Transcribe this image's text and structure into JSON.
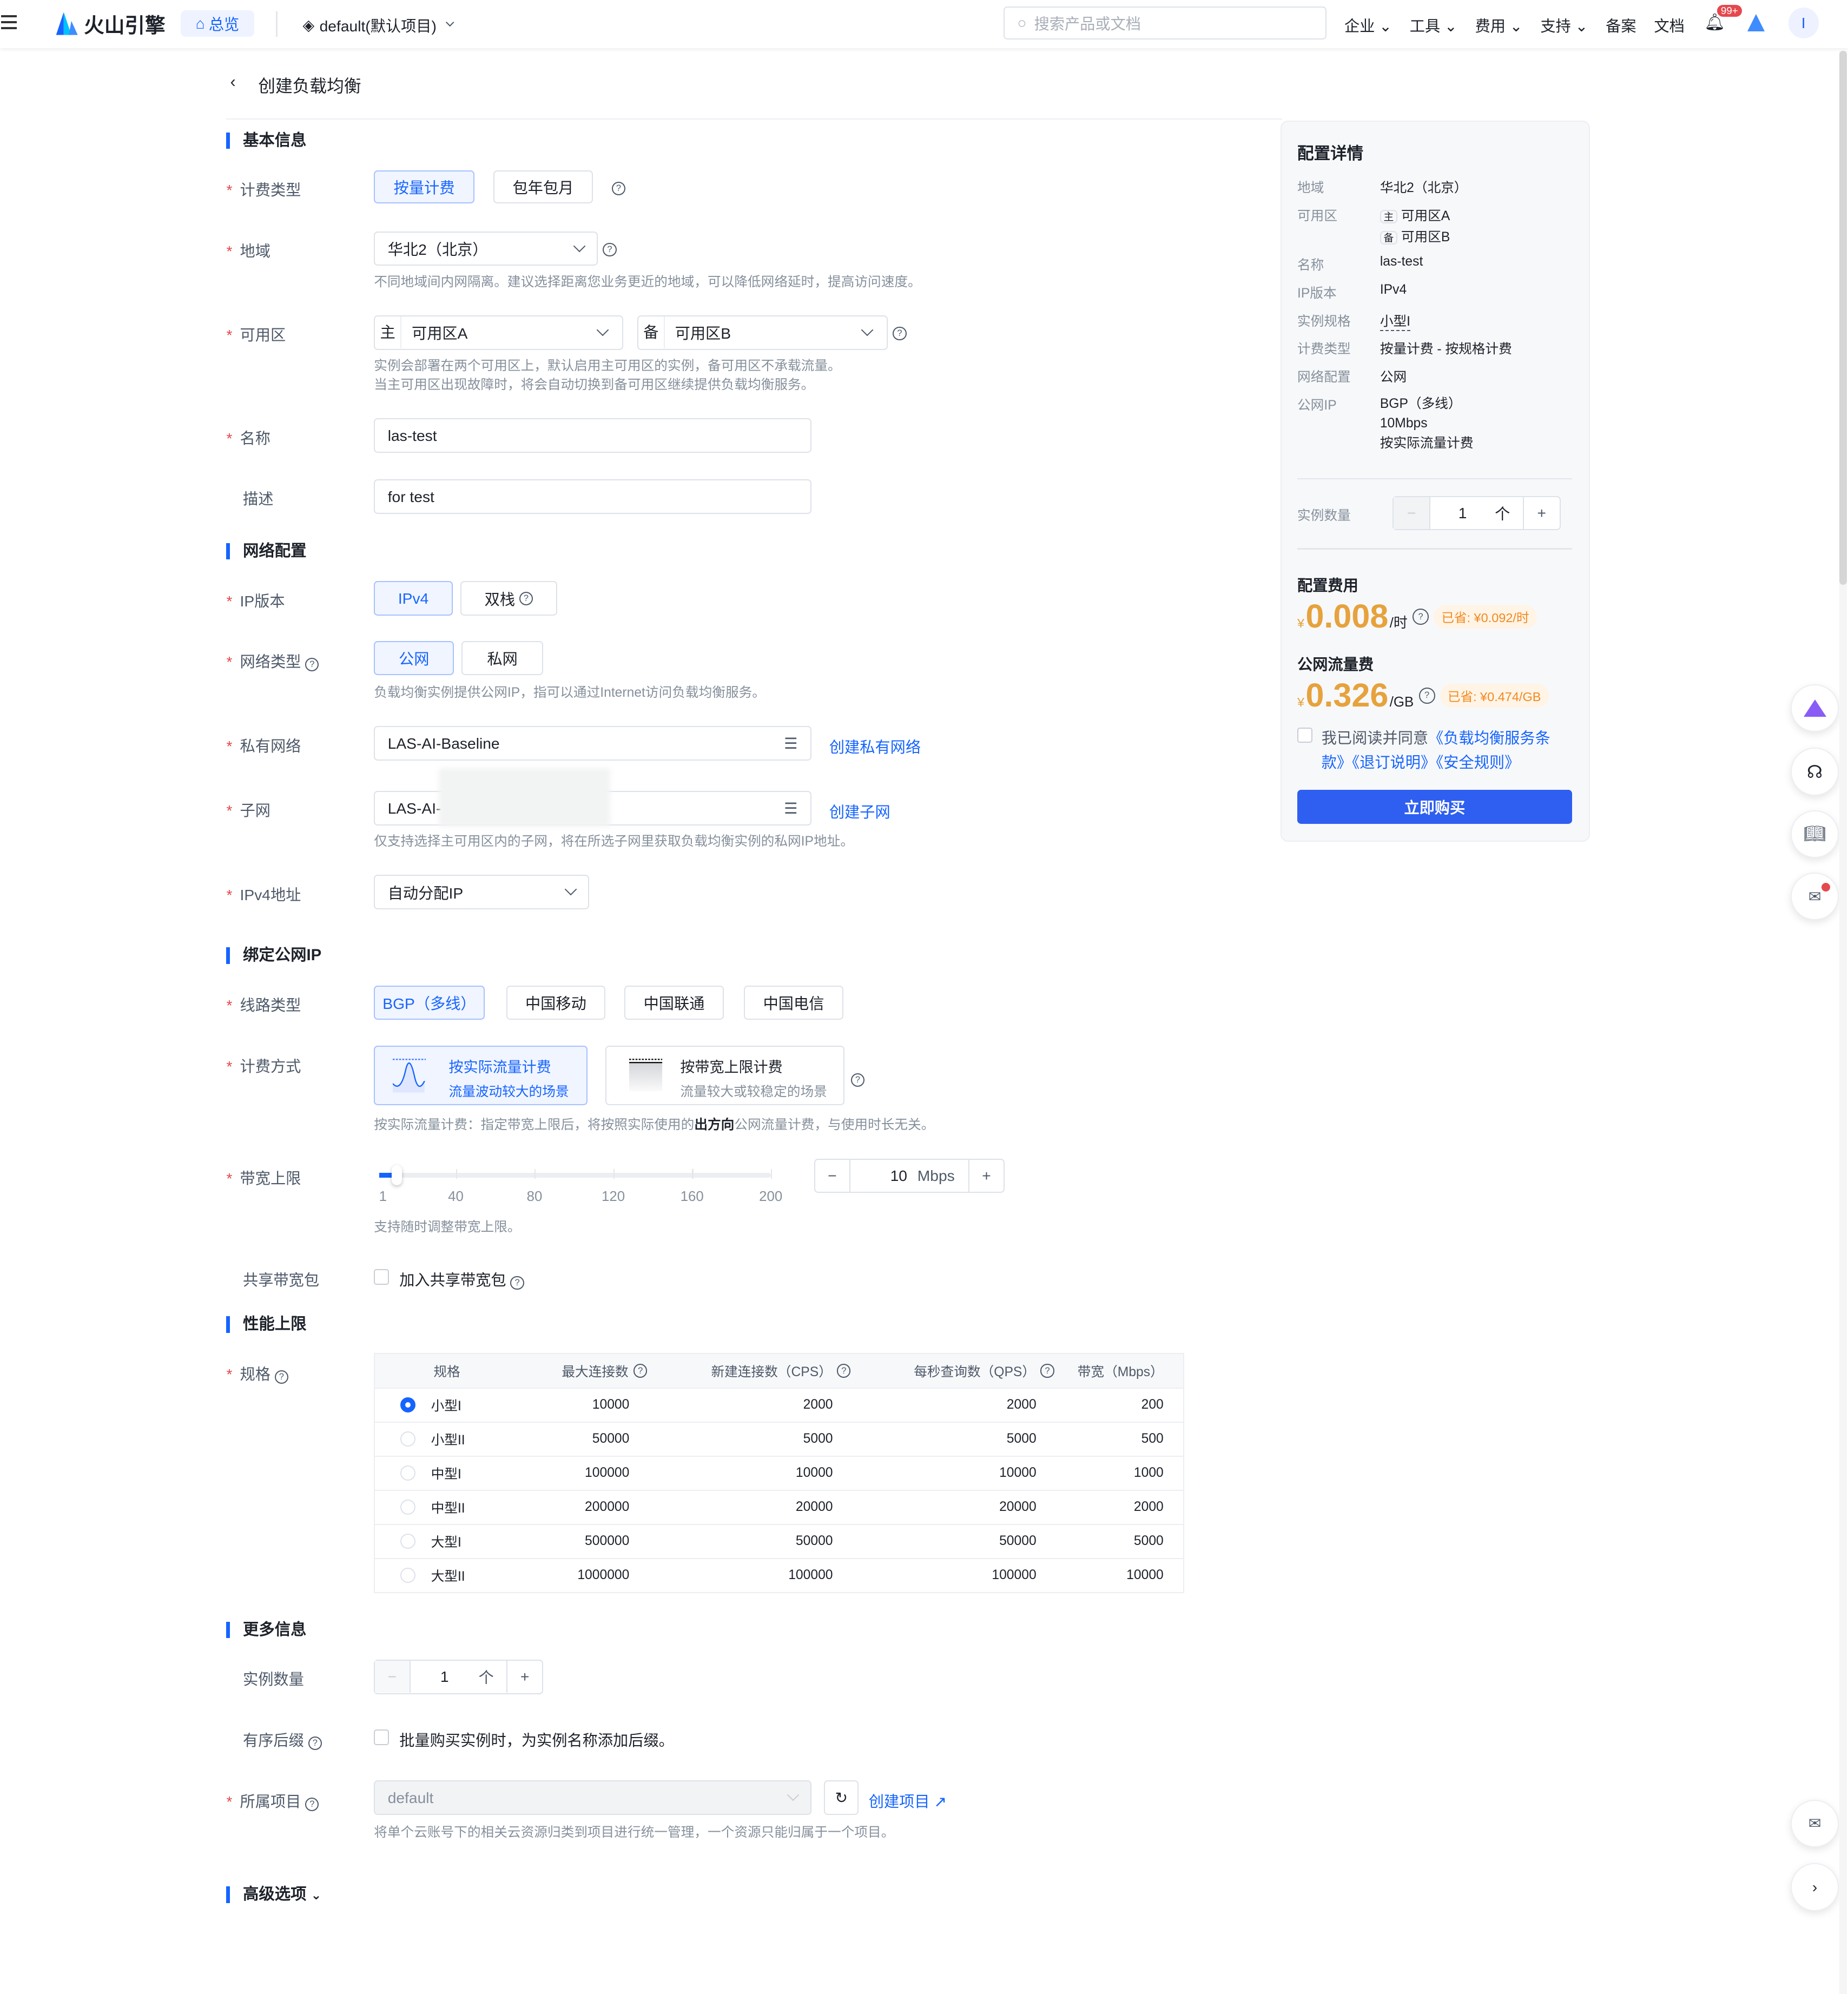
{
  "header": {
    "logo": "火山引擎",
    "overview": "总览",
    "project": "default(默认项目)",
    "search_placeholder": "搜索产品或文档",
    "menu": [
      "企业",
      "工具",
      "费用",
      "支持",
      "备案",
      "文档"
    ],
    "badge": "99+",
    "avatar": "I"
  },
  "page": {
    "title": "创建负载均衡"
  },
  "basic": {
    "title": "基本信息",
    "billing_label": "计费类型",
    "billing_options": [
      "按量计费",
      "包年包月"
    ],
    "region_label": "地域",
    "region_value": "华北2（北京）",
    "region_hint": "不同地域间内网隔离。建议选择距离您业务更近的地域，可以降低网络延时，提高访问速度。",
    "zone_label": "可用区",
    "zone_main_tag": "主",
    "zone_main": "可用区A",
    "zone_backup_tag": "备",
    "zone_backup": "可用区B",
    "zone_hint1": "实例会部署在两个可用区上，默认启用主可用区的实例，备可用区不承载流量。",
    "zone_hint2": "当主可用区出现故障时，将会自动切换到备可用区继续提供负载均衡服务。",
    "name_label": "名称",
    "name_value": "las-test",
    "desc_label": "描述",
    "desc_value": "for test"
  },
  "network": {
    "title": "网络配置",
    "ipver_label": "IP版本",
    "ipver_options": [
      "IPv4",
      "双栈"
    ],
    "nettype_label": "网络类型",
    "nettype_options": [
      "公网",
      "私网"
    ],
    "nettype_hint": "负载均衡实例提供公网IP，指可以通过Internet访问负载均衡服务。",
    "vpc_label": "私有网络",
    "vpc_value": "LAS-AI-Baseline",
    "vpc_link": "创建私有网络",
    "subnet_label": "子网",
    "subnet_value": "LAS-AI-",
    "subnet_link": "创建子网",
    "subnet_hint": "仅支持选择主可用区内的子网，将在所选子网里获取负载均衡实例的私网IP地址。",
    "ipv4_label": "IPv4地址",
    "ipv4_value": "自动分配IP"
  },
  "eip": {
    "title": "绑定公网IP",
    "line_label": "线路类型",
    "line_options": [
      "BGP（多线）",
      "中国移动",
      "中国联通",
      "中国电信"
    ],
    "charge_label": "计费方式",
    "charge_options": [
      {
        "title": "按实际流量计费",
        "desc": "流量波动较大的场景"
      },
      {
        "title": "按带宽上限计费",
        "desc": "流量较大或较稳定的场景"
      }
    ],
    "charge_hint_pre": "按实际流量计费：指定带宽上限后，将按照实际使用的",
    "charge_hint_bold": "出方向",
    "charge_hint_post": "公网流量计费，与使用时长无关。",
    "bw_label": "带宽上限",
    "bw_ticks": [
      "1",
      "40",
      "80",
      "120",
      "160",
      "200"
    ],
    "bw_value": "10",
    "bw_min": 1,
    "bw_max": 200,
    "bw_unit": "Mbps",
    "bw_hint": "支持随时调整带宽上限。",
    "share_label": "共享带宽包",
    "share_text": "加入共享带宽包"
  },
  "perf": {
    "title": "性能上限",
    "spec_label": "规格",
    "columns": [
      "规格",
      "最大连接数",
      "新建连接数（CPS）",
      "每秒查询数（QPS）",
      "带宽（Mbps）"
    ],
    "rows": [
      [
        "小型I",
        "10000",
        "2000",
        "2000",
        "200"
      ],
      [
        "小型II",
        "50000",
        "5000",
        "5000",
        "500"
      ],
      [
        "中型I",
        "100000",
        "10000",
        "10000",
        "1000"
      ],
      [
        "中型II",
        "200000",
        "20000",
        "20000",
        "2000"
      ],
      [
        "大型I",
        "500000",
        "50000",
        "50000",
        "5000"
      ],
      [
        "大型II",
        "1000000",
        "100000",
        "100000",
        "10000"
      ]
    ],
    "selected": 0
  },
  "more": {
    "title": "更多信息",
    "count_label": "实例数量",
    "count": "1",
    "count_unit": "个",
    "suffix_label": "有序后缀",
    "suffix_text": "批量购买实例时，为实例名称添加后缀。",
    "project_label": "所属项目",
    "project_value": "default",
    "project_link": "创建项目",
    "project_hint": "将单个云账号下的相关云资源归类到项目进行统一管理，一个资源只能归属于一个项目。"
  },
  "advanced": {
    "title": "高级选项"
  },
  "summary": {
    "title": "配置详情",
    "items": [
      {
        "label": "地域",
        "value": "华北2（北京）"
      },
      {
        "label": "名称",
        "value": "las-test"
      },
      {
        "label": "IP版本",
        "value": "IPv4"
      },
      {
        "label": "实例规格",
        "value": "小型I"
      },
      {
        "label": "计费类型",
        "value": "按量计费 - 按规格计费"
      },
      {
        "label": "网络配置",
        "value": "公网"
      }
    ],
    "zone_label": "可用区",
    "zone_main_tag": "主",
    "zone_main": "可用区A",
    "zone_backup_tag": "备",
    "zone_backup": "可用区B",
    "eip_label": "公网IP",
    "eip_lines": [
      "BGP（多线）",
      "10Mbps",
      "按实际流量计费"
    ],
    "count_label": "实例数量",
    "count": "1",
    "count_unit": "个",
    "config_fee_title": "配置费用",
    "currency": "¥",
    "config_fee": "0.008",
    "config_unit": "/时",
    "config_save": "已省: ¥0.092/时",
    "traffic_fee_title": "公网流量费",
    "traffic_fee": "0.326",
    "traffic_unit": "/GB",
    "traffic_save": "已省: ¥0.474/GB",
    "agree_text": "我已阅读并同意",
    "agree_links": "《负载均衡服务条款》《退订说明》《安全规则》",
    "buy": "立即购买"
  },
  "colors": {
    "primary": "#1664ff",
    "price": "#e6a23c",
    "save": "#f08a24",
    "required": "#e5484d"
  }
}
